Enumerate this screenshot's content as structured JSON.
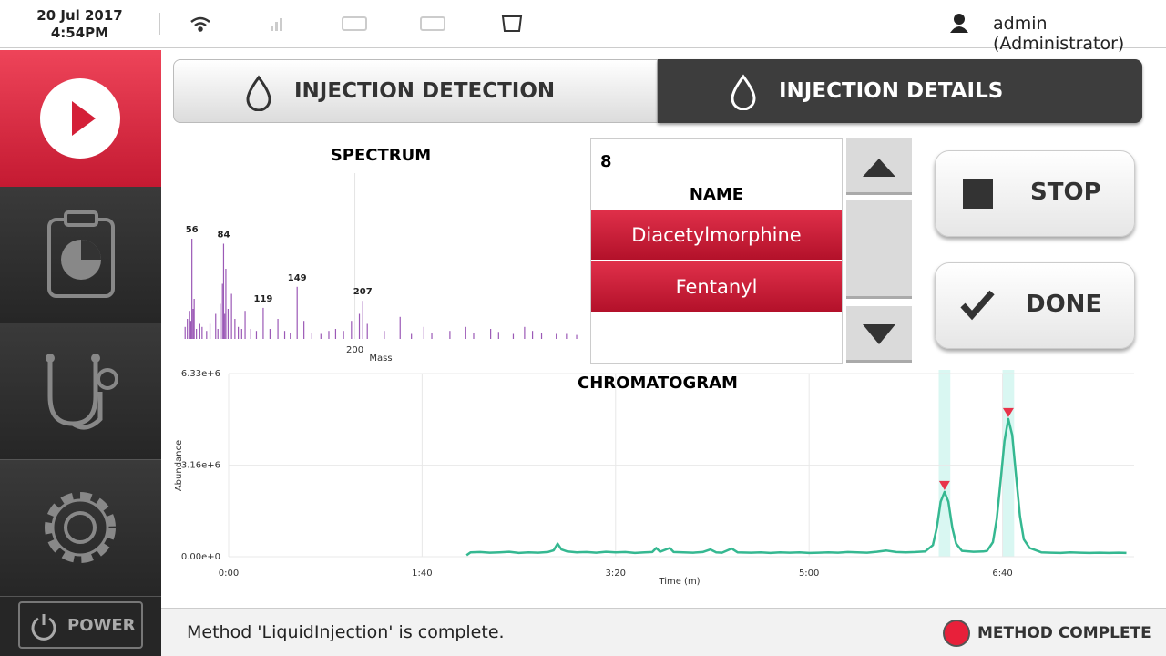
{
  "status_bar": {
    "date": "20 Jul 2017",
    "time": "4:54PM",
    "user": "admin (Administrator)"
  },
  "sidebar": {
    "power": "POWER"
  },
  "tabs": [
    "INJECTION DETECTION",
    "INJECTION DETAILS"
  ],
  "table": {
    "count": "8",
    "header": "NAME",
    "rows": [
      "Diacetylmorphine",
      "Fentanyl"
    ]
  },
  "buttons": {
    "stop": "STOP",
    "done": "DONE"
  },
  "footer": {
    "message": "Method 'LiquidInjection' is complete.",
    "state": "METHOD COMPLETE"
  },
  "chart_data": [
    {
      "type": "bar",
      "title": "SPECTRUM",
      "x_label": "Mass",
      "color": "#9b59b6",
      "xlim": [
        45,
        400
      ],
      "xticks": [
        200
      ],
      "ylim": [
        0,
        100
      ],
      "grid": true,
      "x": [
        50,
        52,
        54,
        55,
        56,
        57,
        58,
        60,
        63,
        65,
        69,
        72,
        77,
        79,
        81,
        83,
        84,
        85,
        86,
        88,
        91,
        94,
        97,
        100,
        103,
        108,
        113,
        119,
        125,
        132,
        138,
        143,
        149,
        155,
        162,
        170,
        177,
        183,
        190,
        197,
        204,
        207,
        211,
        226,
        240,
        250,
        261,
        268,
        284,
        298,
        305,
        320,
        327,
        340,
        350,
        357,
        365,
        378,
        387,
        396
      ],
      "values": [
        12,
        20,
        28,
        18,
        100,
        30,
        40,
        10,
        15,
        12,
        8,
        15,
        25,
        10,
        35,
        55,
        95,
        25,
        70,
        30,
        45,
        20,
        12,
        10,
        28,
        10,
        8,
        31,
        10,
        20,
        8,
        6,
        52,
        18,
        6,
        5,
        8,
        10,
        8,
        18,
        25,
        38,
        15,
        8,
        22,
        5,
        12,
        6,
        8,
        12,
        6,
        10,
        7,
        5,
        12,
        8,
        6,
        5,
        5,
        4
      ],
      "peak_labels": [
        56,
        84,
        119,
        149,
        207
      ]
    },
    {
      "type": "line",
      "title": "CHROMATOGRAM",
      "x_label": "Time (m)",
      "y_label": "Abundance",
      "color": "#35b891",
      "xlim": [
        0,
        468
      ],
      "ylim": [
        0,
        6330000
      ],
      "grid": true,
      "xticks": [
        {
          "value": 0,
          "label": "0:00"
        },
        {
          "value": 100,
          "label": "1:40"
        },
        {
          "value": 200,
          "label": "3:20"
        },
        {
          "value": 300,
          "label": "5:00"
        },
        {
          "value": 400,
          "label": "6:40"
        }
      ],
      "yticks": [
        {
          "value": 0,
          "label": "0.00e+0"
        },
        {
          "value": 3160000,
          "label": "3.16e+6"
        },
        {
          "value": 6330000,
          "label": "6.33e+6"
        }
      ],
      "x": [
        123,
        125,
        130,
        135,
        140,
        145,
        150,
        155,
        160,
        165,
        168,
        170,
        172,
        175,
        180,
        185,
        190,
        195,
        200,
        205,
        210,
        215,
        219,
        221,
        223,
        228,
        230,
        235,
        240,
        245,
        249,
        252,
        255,
        260,
        263,
        270,
        275,
        280,
        285,
        290,
        295,
        300,
        305,
        310,
        315,
        320,
        325,
        330,
        335,
        340,
        345,
        350,
        355,
        360,
        364,
        366,
        368,
        370,
        372,
        374,
        376,
        379,
        385,
        390,
        392,
        395,
        397,
        399,
        401,
        403,
        405,
        407,
        409,
        411,
        414,
        418,
        420,
        425,
        430,
        435,
        440,
        445,
        450,
        455,
        460,
        464
      ],
      "values": [
        50000,
        150000,
        160000,
        140000,
        150000,
        170000,
        130000,
        150000,
        140000,
        160000,
        220000,
        450000,
        250000,
        180000,
        150000,
        160000,
        140000,
        170000,
        150000,
        160000,
        130000,
        150000,
        160000,
        300000,
        170000,
        300000,
        160000,
        150000,
        140000,
        160000,
        250000,
        150000,
        140000,
        280000,
        150000,
        140000,
        150000,
        130000,
        150000,
        140000,
        150000,
        130000,
        140000,
        150000,
        140000,
        160000,
        150000,
        140000,
        170000,
        210000,
        160000,
        150000,
        160000,
        180000,
        400000,
        1000000,
        1900000,
        2240000,
        1900000,
        1000000,
        450000,
        200000,
        170000,
        180000,
        200000,
        500000,
        1300000,
        2600000,
        4000000,
        4760000,
        4200000,
        2800000,
        1400000,
        600000,
        300000,
        200000,
        150000,
        140000,
        130000,
        150000,
        140000,
        130000,
        140000,
        130000,
        140000,
        130000
      ],
      "markers": {
        "x": [
          370,
          403
        ],
        "values": [
          2240000,
          4760000
        ],
        "color": "#e8334a"
      },
      "highlights": [
        [
          367,
          373
        ],
        [
          400,
          406
        ]
      ],
      "highlight_color": "#d9f7f2"
    }
  ]
}
